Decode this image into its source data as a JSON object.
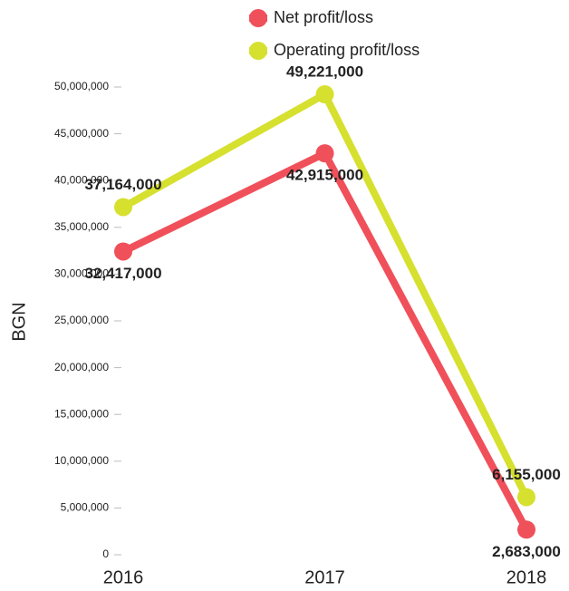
{
  "chart_data": {
    "type": "line",
    "categories": [
      "2016",
      "2017",
      "2018"
    ],
    "series": [
      {
        "name": "Net profit/loss",
        "color": "#f0505a",
        "values": [
          32417000,
          42915000,
          2683000
        ],
        "value_labels": [
          "32,417,000",
          "42,915,000",
          "2,683,000"
        ]
      },
      {
        "name": "Operating profit/loss",
        "color": "#d6e02e",
        "values": [
          37164000,
          49221000,
          6155000
        ],
        "value_labels": [
          "37,164,000",
          "49,221,000",
          "6,155,000"
        ]
      }
    ],
    "y_label": "BGN",
    "ylim": [
      0,
      50000000
    ],
    "yticks": [
      0,
      {
        "value": 5000000,
        "label": "5,000,000"
      },
      {
        "value": 10000000,
        "label": "10,000,000"
      },
      {
        "value": 15000000,
        "label": "15,000,000"
      },
      {
        "value": 20000000,
        "label": "20,000,000"
      },
      {
        "value": 25000000,
        "label": "25,000,000"
      },
      {
        "value": 30000000,
        "label": "30,000,000"
      },
      {
        "value": 35000000,
        "label": "35,000,000"
      },
      {
        "value": 40000000,
        "label": "40,000,000"
      },
      {
        "value": 45000000,
        "label": "45,000,000"
      },
      {
        "value": 50000000,
        "label": "50,000,000"
      }
    ],
    "grid": false
  }
}
